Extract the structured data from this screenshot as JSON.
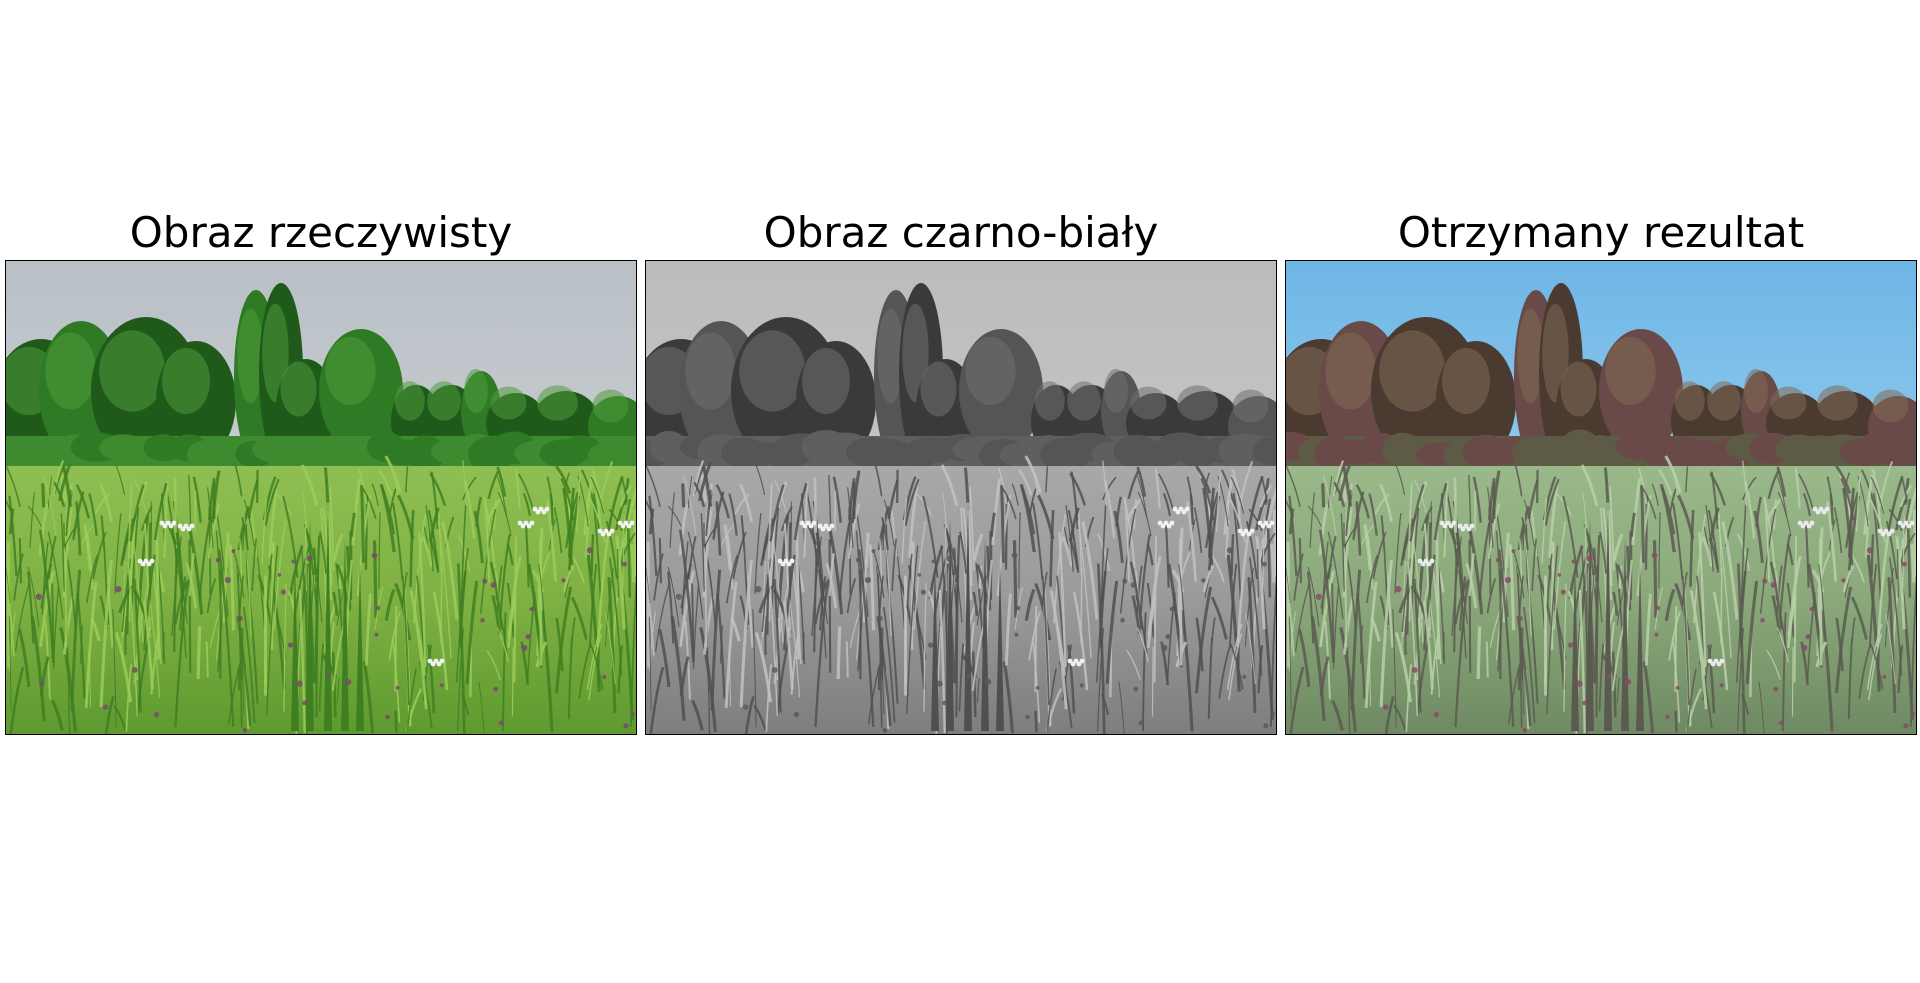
{
  "figure": {
    "panels": [
      {
        "title": "Obraz rzeczywisty",
        "scene": "meadow-photo",
        "palette": {
          "sky_top": "#b9c0c6",
          "sky_bottom": "#c6cbce",
          "tree_dark": "#1f5a1b",
          "tree_mid": "#2f7a25",
          "tree_light": "#4f9a3a",
          "bush": "#3e8a2e",
          "grass_far": "#8fbf52",
          "grass_mid": "#7fb043",
          "grass_near": "#5e9a30",
          "blade": "#3f7f22",
          "blade_light": "#9ccc5a",
          "flower": "#f2f2f2",
          "thistle": "#7a4a6a"
        }
      },
      {
        "title": "Obraz czarno-biały",
        "scene": "meadow-grayscale",
        "palette": {
          "sky_top": "#bcbcbc",
          "sky_bottom": "#c4c4c4",
          "tree_dark": "#3a3a3a",
          "tree_mid": "#555555",
          "tree_light": "#707070",
          "bush": "#5f5f5f",
          "grass_far": "#a8a8a8",
          "grass_mid": "#9a9a9a",
          "grass_near": "#7e7e7e",
          "blade": "#505050",
          "blade_light": "#c2c2c2",
          "flower": "#f0f0f0",
          "thistle": "#5a5a5a"
        }
      },
      {
        "title": "Otrzymany rezultat",
        "scene": "meadow-colorized",
        "palette": {
          "sky_top": "#6eb6e6",
          "sky_bottom": "#8cc8ec",
          "tree_dark": "#4a3a30",
          "tree_mid": "#6a4a48",
          "tree_light": "#7f6a55",
          "bush": "#5d5a45",
          "grass_far": "#9ab98a",
          "grass_mid": "#8aa87a",
          "grass_near": "#6f8a63",
          "blade": "#5a5a50",
          "blade_light": "#b8d0a8",
          "flower": "#eaeaea",
          "thistle": "#8a4a6a"
        }
      }
    ]
  }
}
